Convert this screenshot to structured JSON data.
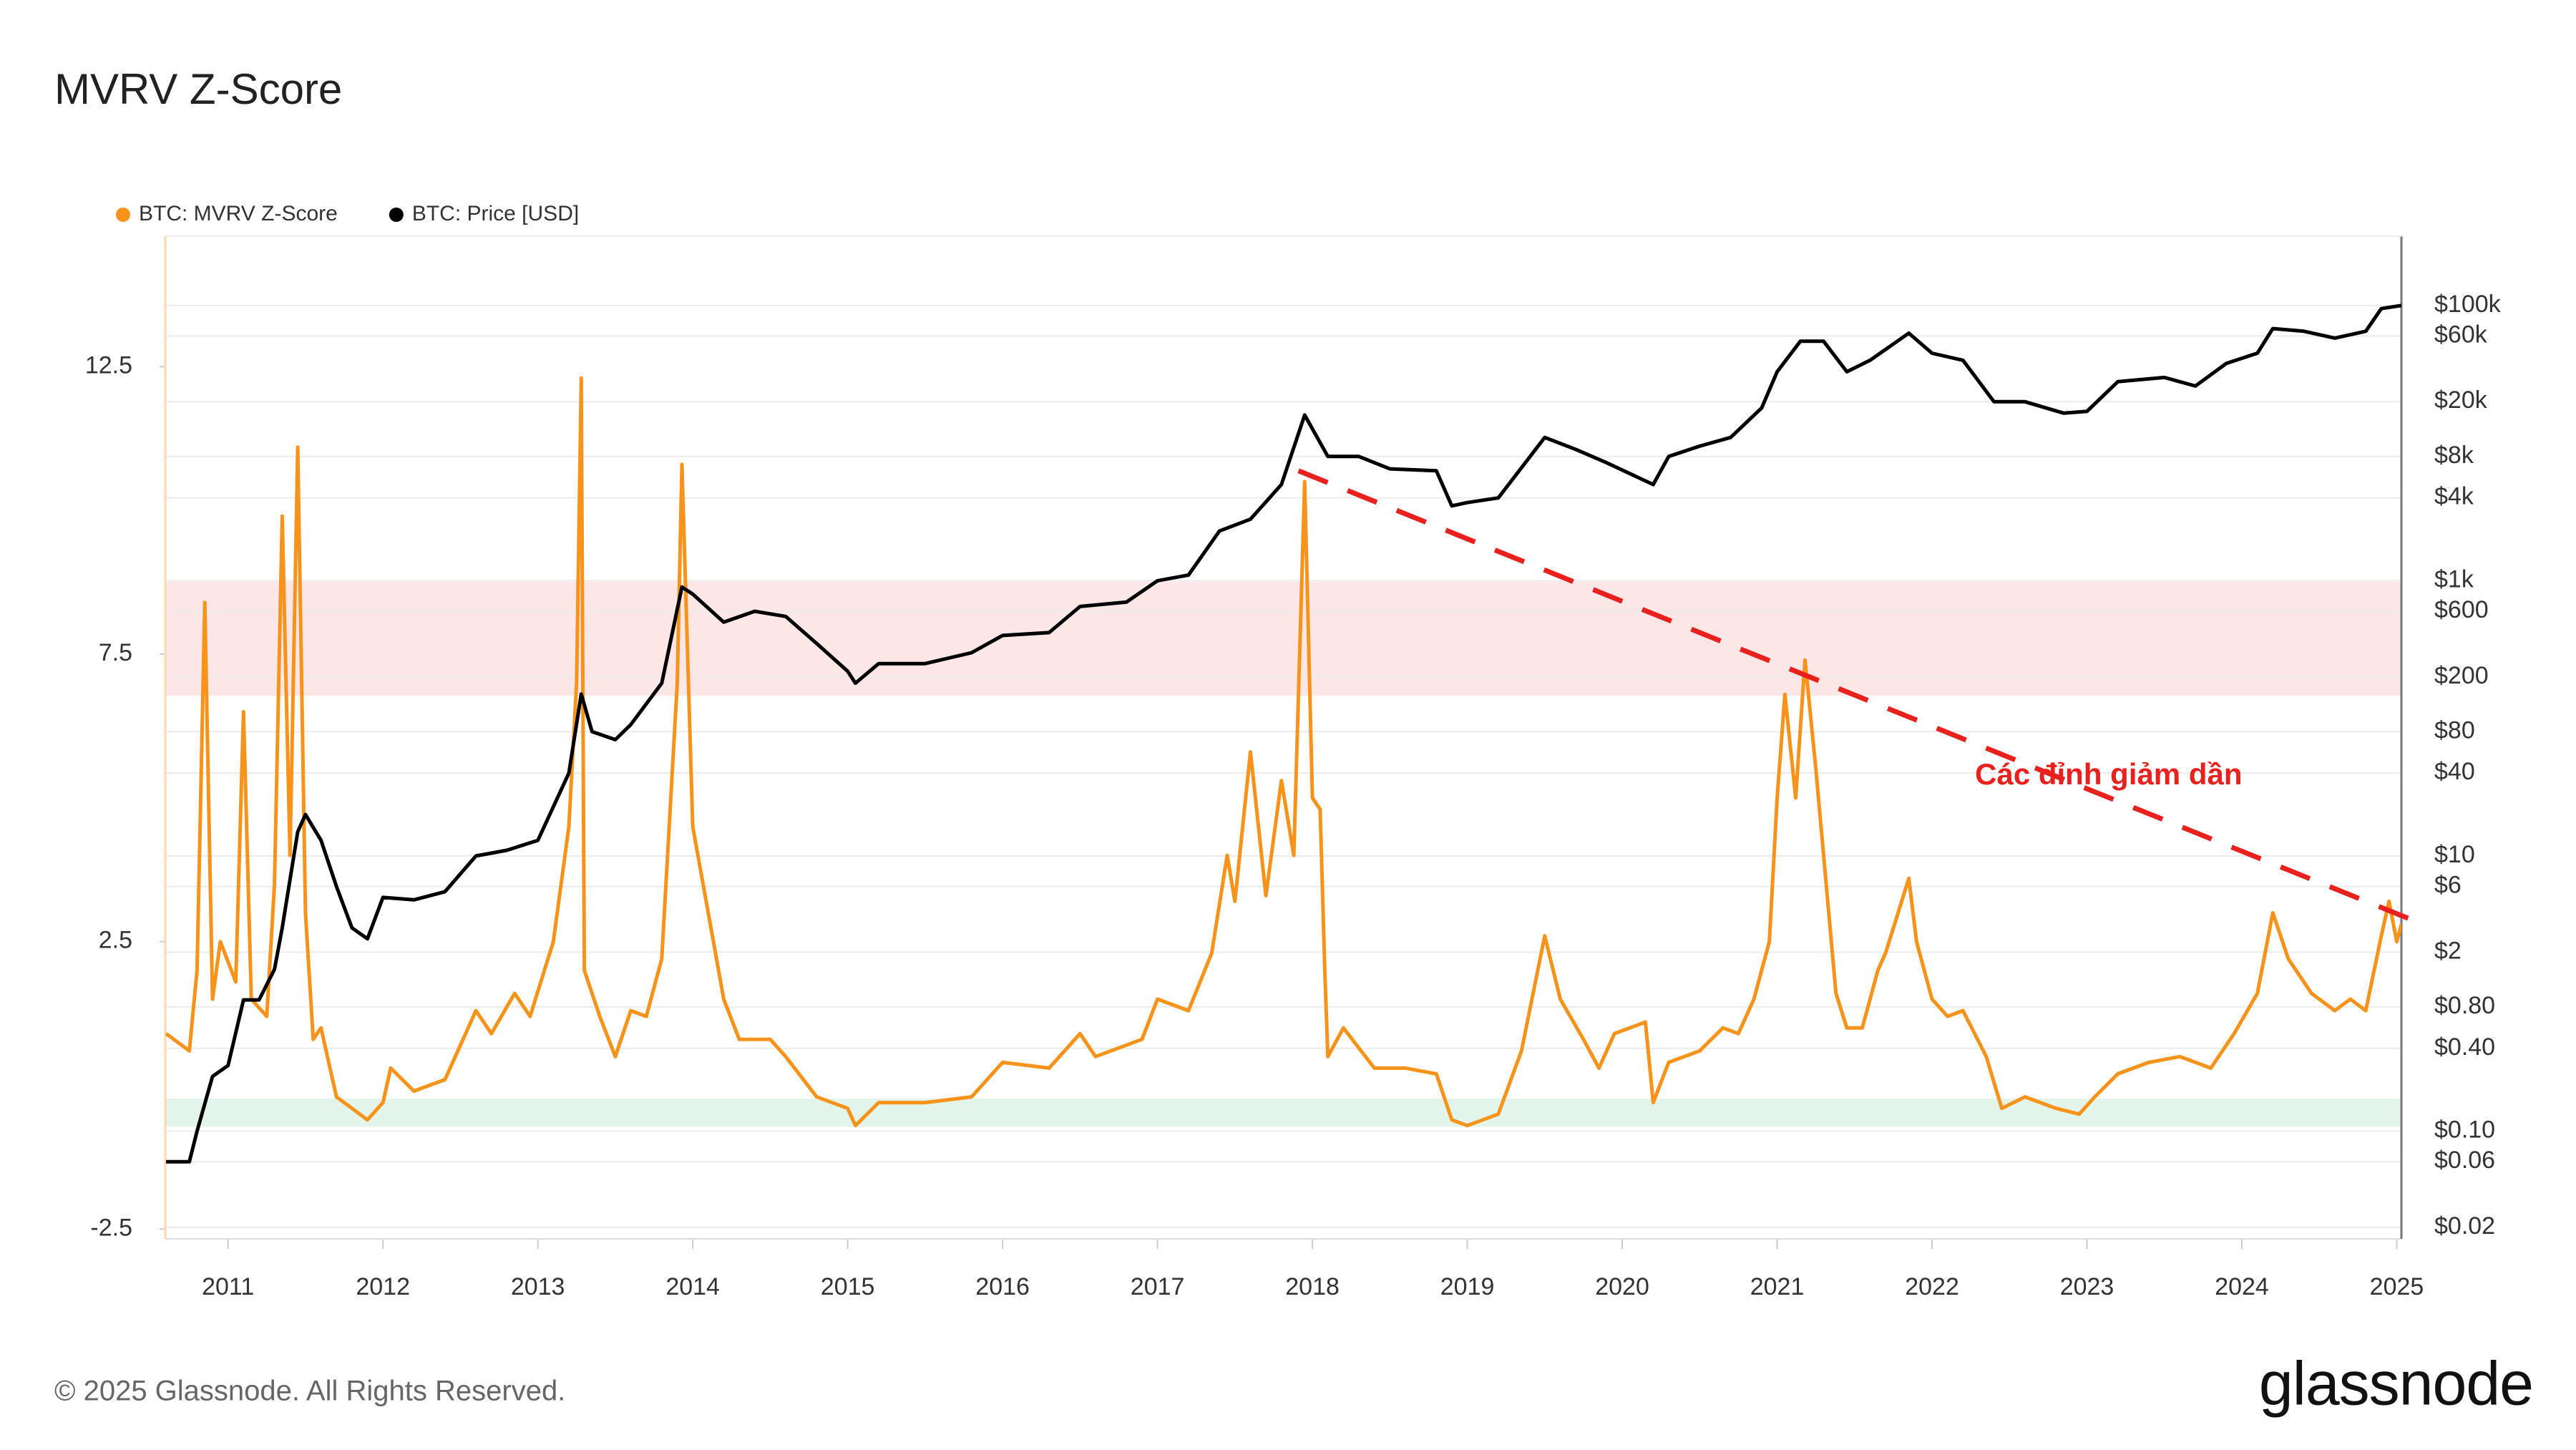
{
  "chart_data": {
    "type": "line",
    "title": "MVRV Z-Score",
    "footer": "© 2025 Glassnode. All Rights Reserved.",
    "brand": "glassnode",
    "xlim": [
      2010.595,
      2025.03
    ],
    "xticks": [
      2011,
      2012,
      2013,
      2014,
      2015,
      2016,
      2017,
      2018,
      2019,
      2020,
      2021,
      2022,
      2023,
      2024,
      2025
    ],
    "ylim": [
      -2.67,
      14.77
    ],
    "yticks": [
      12.5,
      7.5,
      2.5,
      -2.5
    ],
    "y2lim": [
      0.0165,
      319000
    ],
    "y2_log": true,
    "y2ticks": [
      {
        "value": 100000,
        "label": "$100k"
      },
      {
        "value": 60000,
        "label": "$60k"
      },
      {
        "value": 20000,
        "label": "$20k"
      },
      {
        "value": 8000,
        "label": "$8k"
      },
      {
        "value": 4000,
        "label": "$4k"
      },
      {
        "value": 1000,
        "label": "$1k"
      },
      {
        "value": 600,
        "label": "$600"
      },
      {
        "value": 200,
        "label": "$200"
      },
      {
        "value": 80,
        "label": "$80"
      },
      {
        "value": 40,
        "label": "$40"
      },
      {
        "value": 10,
        "label": "$10"
      },
      {
        "value": 6,
        "label": "$6"
      },
      {
        "value": 2,
        "label": "$2"
      },
      {
        "value": 0.8,
        "label": "$0.80"
      },
      {
        "value": 0.4,
        "label": "$0.40"
      },
      {
        "value": 0.1,
        "label": "$0.10"
      },
      {
        "value": 0.06,
        "label": "$0.06"
      },
      {
        "value": 0.02,
        "label": "$0.02"
      }
    ],
    "grid": true,
    "legend": "top-left",
    "bands": [
      {
        "ylim": [
          6.78,
          8.76
        ],
        "color": "#fde6e6"
      },
      {
        "ylim": [
          -0.72,
          -0.23
        ],
        "color": "#e3f5ea"
      }
    ],
    "trend_line": {
      "x": [
        2017.91,
        2025.18
      ],
      "y": [
        10.69,
        2.79
      ],
      "color": "#e8201e"
    },
    "annotations": [
      {
        "text": "Các đỉnh giảm dần",
        "x": 2023.14,
        "y": 5.37,
        "color": "#e8201e"
      }
    ],
    "series": [
      {
        "name": "BTC: MVRV Z-Score",
        "color": "#f7931a",
        "x": [
          2010.6,
          2010.75,
          2010.8,
          2010.85,
          2010.9,
          2010.95,
          2011.05,
          2011.1,
          2011.15,
          2011.25,
          2011.3,
          2011.35,
          2011.4,
          2011.45,
          2011.5,
          2011.55,
          2011.6,
          2011.7,
          2011.8,
          2011.9,
          2012.0,
          2012.05,
          2012.2,
          2012.4,
          2012.6,
          2012.7,
          2012.85,
          2012.95,
          2013.1,
          2013.2,
          2013.25,
          2013.28,
          2013.3,
          2013.4,
          2013.5,
          2013.6,
          2013.7,
          2013.8,
          2013.9,
          2013.93,
          2014.0,
          2014.1,
          2014.2,
          2014.3,
          2014.5,
          2014.6,
          2014.8,
          2015.0,
          2015.05,
          2015.2,
          2015.5,
          2015.8,
          2015.9,
          2016.0,
          2016.3,
          2016.5,
          2016.6,
          2016.9,
          2017.0,
          2017.2,
          2017.35,
          2017.45,
          2017.5,
          2017.6,
          2017.7,
          2017.8,
          2017.88,
          2017.95,
          2018.0,
          2018.05,
          2018.08,
          2018.1,
          2018.2,
          2018.4,
          2018.6,
          2018.8,
          2018.9,
          2019.0,
          2019.2,
          2019.35,
          2019.5,
          2019.6,
          2019.75,
          2019.85,
          2019.95,
          2020.15,
          2020.2,
          2020.3,
          2020.5,
          2020.65,
          2020.75,
          2020.85,
          2020.95,
          2021.0,
          2021.05,
          2021.12,
          2021.18,
          2021.25,
          2021.3,
          2021.38,
          2021.45,
          2021.55,
          2021.65,
          2021.7,
          2021.85,
          2021.9,
          2022.0,
          2022.1,
          2022.2,
          2022.35,
          2022.45,
          2022.6,
          2022.8,
          2022.95,
          2023.05,
          2023.2,
          2023.4,
          2023.6,
          2023.8,
          2023.95,
          2024.1,
          2024.2,
          2024.3,
          2024.45,
          2024.6,
          2024.7,
          2024.8,
          2024.9,
          2024.95,
          2025.0,
          2025.03
        ],
        "values": [
          0.9,
          0.6,
          2.0,
          8.4,
          1.5,
          2.5,
          1.8,
          6.5,
          1.5,
          1.2,
          3.5,
          9.9,
          4.0,
          11.1,
          3.0,
          0.8,
          1.0,
          -0.2,
          -0.4,
          -0.6,
          -0.3,
          0.3,
          -0.1,
          0.1,
          1.3,
          0.9,
          1.6,
          1.2,
          2.5,
          4.5,
          7.0,
          12.3,
          2.0,
          1.2,
          0.5,
          1.3,
          1.2,
          2.2,
          7.0,
          10.8,
          4.5,
          3.0,
          1.5,
          0.8,
          0.8,
          0.5,
          -0.2,
          -0.4,
          -0.7,
          -0.3,
          -0.3,
          -0.2,
          0.1,
          0.4,
          0.3,
          0.9,
          0.5,
          0.8,
          1.5,
          1.3,
          2.3,
          4.0,
          3.2,
          5.8,
          3.3,
          5.3,
          4.0,
          10.5,
          5.0,
          4.8,
          2.0,
          0.5,
          1.0,
          0.3,
          0.3,
          0.2,
          -0.6,
          -0.7,
          -0.5,
          0.6,
          2.6,
          1.5,
          0.8,
          0.3,
          0.9,
          1.1,
          -0.3,
          0.4,
          0.6,
          1.0,
          0.9,
          1.5,
          2.5,
          5.0,
          6.8,
          5.0,
          7.4,
          5.5,
          4.0,
          1.6,
          1.0,
          1.0,
          2.0,
          2.3,
          3.6,
          2.5,
          1.5,
          1.2,
          1.3,
          0.5,
          -0.4,
          -0.2,
          -0.4,
          -0.5,
          -0.2,
          0.2,
          0.4,
          0.5,
          0.3,
          0.9,
          1.6,
          3.0,
          2.2,
          1.6,
          1.3,
          1.5,
          1.3,
          2.6,
          3.2,
          2.5,
          2.8
        ]
      },
      {
        "name": "BTC: Price [USD]",
        "color": "#000000",
        "axis": "y2",
        "x": [
          2010.6,
          2010.75,
          2010.8,
          2010.9,
          2011.0,
          2011.1,
          2011.2,
          2011.3,
          2011.35,
          2011.45,
          2011.5,
          2011.6,
          2011.7,
          2011.8,
          2011.9,
          2012.0,
          2012.2,
          2012.4,
          2012.6,
          2012.8,
          2013.0,
          2013.2,
          2013.28,
          2013.35,
          2013.5,
          2013.6,
          2013.8,
          2013.93,
          2014.0,
          2014.2,
          2014.4,
          2014.6,
          2014.8,
          2015.0,
          2015.05,
          2015.2,
          2015.5,
          2015.8,
          2016.0,
          2016.3,
          2016.5,
          2016.8,
          2017.0,
          2017.2,
          2017.4,
          2017.6,
          2017.8,
          2017.95,
          2018.1,
          2018.3,
          2018.5,
          2018.8,
          2018.9,
          2019.0,
          2019.2,
          2019.5,
          2019.7,
          2019.9,
          2020.2,
          2020.3,
          2020.5,
          2020.7,
          2020.9,
          2021.0,
          2021.15,
          2021.3,
          2021.45,
          2021.6,
          2021.85,
          2022.0,
          2022.2,
          2022.4,
          2022.6,
          2022.85,
          2023.0,
          2023.2,
          2023.5,
          2023.7,
          2023.9,
          2024.1,
          2024.2,
          2024.4,
          2024.6,
          2024.8,
          2024.9,
          2025.03
        ],
        "values": [
          0.06,
          0.06,
          0.1,
          0.25,
          0.3,
          0.9,
          0.9,
          1.5,
          3,
          15,
          20,
          13,
          6,
          3,
          2.5,
          5,
          4.8,
          5.5,
          10,
          11,
          13,
          40,
          150,
          80,
          70,
          90,
          180,
          900,
          800,
          500,
          600,
          550,
          350,
          220,
          180,
          250,
          250,
          300,
          400,
          420,
          650,
          700,
          1000,
          1100,
          2300,
          2800,
          5000,
          16000,
          8000,
          8000,
          6500,
          6300,
          3500,
          3700,
          4000,
          11000,
          9000,
          7200,
          5000,
          8000,
          9500,
          11000,
          18000,
          33000,
          55000,
          55000,
          33000,
          40000,
          63000,
          45000,
          40000,
          20000,
          20000,
          16500,
          17000,
          28000,
          30000,
          26000,
          38000,
          45000,
          68000,
          65000,
          58000,
          65000,
          95000,
          100000
        ]
      }
    ]
  }
}
